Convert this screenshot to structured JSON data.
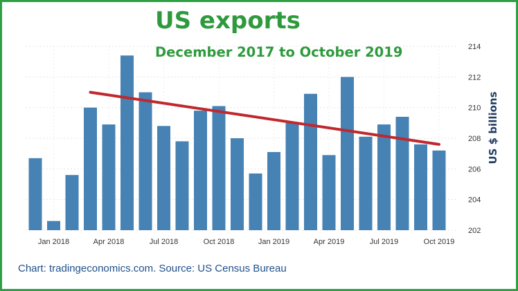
{
  "chart_data": {
    "type": "bar",
    "title": "US exports",
    "subtitle": "December 2017 to October 2019",
    "xlabel": "",
    "ylabel": "US $ billions",
    "source": "Chart: tradingeconomics.com. Source: US Census Bureau",
    "ylim": [
      202,
      214
    ],
    "yticks": [
      202,
      204,
      206,
      208,
      210,
      212,
      214
    ],
    "y_axis_position": "right",
    "grid": true,
    "categories": [
      "Dec 2017",
      "Jan 2018",
      "Feb 2018",
      "Mar 2018",
      "Apr 2018",
      "May 2018",
      "Jun 2018",
      "Jul 2018",
      "Aug 2018",
      "Sep 2018",
      "Oct 2018",
      "Nov 2018",
      "Dec 2018",
      "Jan 2019",
      "Feb 2019",
      "Mar 2019",
      "Apr 2019",
      "May 2019",
      "Jun 2019",
      "Jul 2019",
      "Aug 2019",
      "Sep 2019",
      "Oct 2019"
    ],
    "x_tick_labels": [
      {
        "index": 1,
        "label": "Jan 2018"
      },
      {
        "index": 4,
        "label": "Apr 2018"
      },
      {
        "index": 7,
        "label": "Jul 2018"
      },
      {
        "index": 10,
        "label": "Oct 2018"
      },
      {
        "index": 13,
        "label": "Jan 2019"
      },
      {
        "index": 16,
        "label": "Apr 2019"
      },
      {
        "index": 19,
        "label": "Jul 2019"
      },
      {
        "index": 22,
        "label": "Oct 2019"
      }
    ],
    "series": [
      {
        "values": [
          206.7,
          202.6,
          205.6,
          210.0,
          208.9,
          213.4,
          211.0,
          208.8,
          207.8,
          209.8,
          210.1,
          208.0,
          205.7,
          207.1,
          209.0,
          210.9,
          206.9,
          212.0,
          208.1,
          208.9,
          209.4,
          207.6,
          207.2
        ]
      }
    ],
    "trendline": {
      "start": {
        "category": "Mar 2018",
        "value": 211.0
      },
      "end": {
        "category": "Oct 2019",
        "value": 207.6
      }
    },
    "colors": {
      "bar": "#4682b4",
      "trendline": "#c0282d",
      "title": "#2e9a3d",
      "frame": "#2ea043",
      "ylabel": "#1f3c63",
      "source": "#1f4f8a"
    }
  }
}
